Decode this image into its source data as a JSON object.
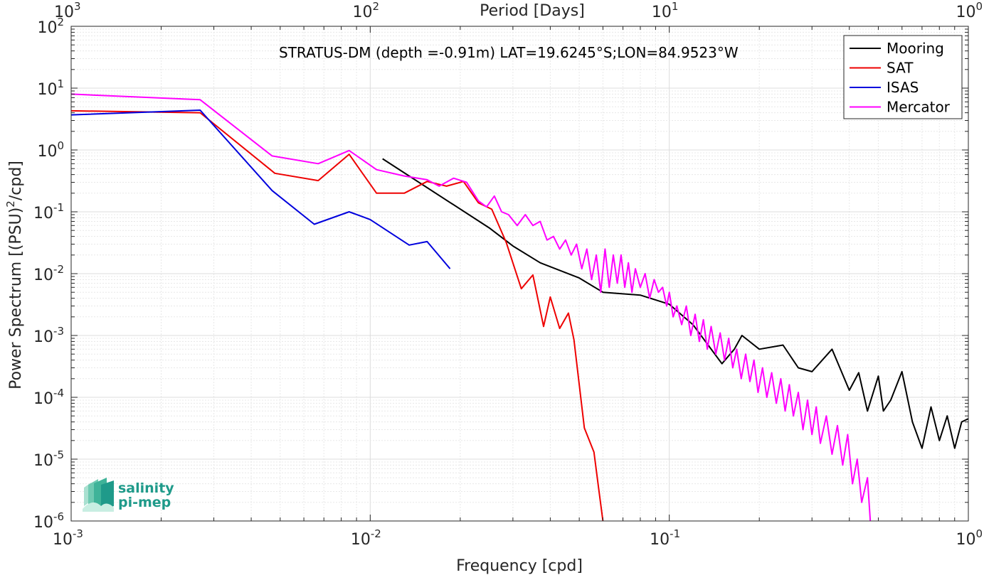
{
  "chart_data": {
    "type": "line",
    "annotation": "STRATUS-DM (depth =-0.91m) LAT=19.6245°S;LON=84.9523°W",
    "xlabel": "Frequency [cpd]",
    "ylabel_main": "Power Spectrum [(PSU)",
    "ylabel_sup": "2",
    "ylabel_tail": "/cpd]",
    "top_xlabel": "Period [Days]",
    "xscale": "log",
    "yscale": "log",
    "xlim": [
      0.001,
      1
    ],
    "ylim": [
      1e-06,
      100
    ],
    "grid": true,
    "legend_position": "top-right",
    "x_tick_labels": [
      {
        "base": "10",
        "exp": "-3"
      },
      {
        "base": "10",
        "exp": "-2"
      },
      {
        "base": "10",
        "exp": "-1"
      },
      {
        "base": "10",
        "exp": "0"
      }
    ],
    "top_tick_labels": [
      {
        "base": "10",
        "exp": "3"
      },
      {
        "base": "10",
        "exp": "2"
      },
      {
        "base": "10",
        "exp": "1"
      },
      {
        "base": "10",
        "exp": "0"
      }
    ],
    "y_tick_labels": [
      {
        "base": "10",
        "exp": "2"
      },
      {
        "base": "10",
        "exp": "1"
      },
      {
        "base": "10",
        "exp": "0"
      },
      {
        "base": "10",
        "exp": "-1"
      },
      {
        "base": "10",
        "exp": "-2"
      },
      {
        "base": "10",
        "exp": "-3"
      },
      {
        "base": "10",
        "exp": "-4"
      },
      {
        "base": "10",
        "exp": "-5"
      },
      {
        "base": "10",
        "exp": "-6"
      }
    ],
    "series": [
      {
        "name": "Mooring",
        "color": "#000000",
        "points": [
          [
            0.011,
            0.72
          ],
          [
            0.025,
            0.055
          ],
          [
            0.03,
            0.028
          ],
          [
            0.037,
            0.015
          ],
          [
            0.05,
            0.0085
          ],
          [
            0.06,
            0.005
          ],
          [
            0.08,
            0.0045
          ],
          [
            0.1,
            0.0032
          ],
          [
            0.12,
            0.0015
          ],
          [
            0.15,
            0.00035
          ],
          [
            0.165,
            0.0006
          ],
          [
            0.175,
            0.001
          ],
          [
            0.2,
            0.0006
          ],
          [
            0.24,
            0.0007
          ],
          [
            0.27,
            0.0003
          ],
          [
            0.3,
            0.00026
          ],
          [
            0.35,
            0.0006
          ],
          [
            0.4,
            0.00013
          ],
          [
            0.43,
            0.00025
          ],
          [
            0.46,
            6e-05
          ],
          [
            0.5,
            0.00022
          ],
          [
            0.52,
            6e-05
          ],
          [
            0.55,
            9e-05
          ],
          [
            0.6,
            0.00026
          ],
          [
            0.65,
            4e-05
          ],
          [
            0.7,
            1.5e-05
          ],
          [
            0.75,
            7e-05
          ],
          [
            0.8,
            2e-05
          ],
          [
            0.85,
            5e-05
          ],
          [
            0.9,
            1.5e-05
          ],
          [
            0.95,
            4e-05
          ],
          [
            1.0,
            4.5e-05
          ]
        ]
      },
      {
        "name": "SAT",
        "color": "#ee0000",
        "points": [
          [
            0.001,
            4.3
          ],
          [
            0.0027,
            4.0
          ],
          [
            0.0048,
            0.42
          ],
          [
            0.0067,
            0.32
          ],
          [
            0.0085,
            0.85
          ],
          [
            0.0105,
            0.2
          ],
          [
            0.013,
            0.2
          ],
          [
            0.0155,
            0.31
          ],
          [
            0.018,
            0.26
          ],
          [
            0.0205,
            0.31
          ],
          [
            0.023,
            0.14
          ],
          [
            0.0255,
            0.11
          ],
          [
            0.0285,
            0.032
          ],
          [
            0.032,
            0.0057
          ],
          [
            0.035,
            0.0095
          ],
          [
            0.038,
            0.0014
          ],
          [
            0.04,
            0.0042
          ],
          [
            0.043,
            0.0013
          ],
          [
            0.046,
            0.0023
          ],
          [
            0.048,
            0.00085
          ],
          [
            0.052,
            3.2e-05
          ],
          [
            0.056,
            1.3e-05
          ],
          [
            0.058,
            3.5e-06
          ],
          [
            0.06,
            1e-06
          ]
        ]
      },
      {
        "name": "ISAS",
        "color": "#0000dd",
        "points": [
          [
            0.001,
            3.7
          ],
          [
            0.0027,
            4.4
          ],
          [
            0.0047,
            0.22
          ],
          [
            0.0065,
            0.063
          ],
          [
            0.0085,
            0.1
          ],
          [
            0.01,
            0.075
          ],
          [
            0.0135,
            0.029
          ],
          [
            0.0155,
            0.033
          ],
          [
            0.0185,
            0.012
          ]
        ]
      },
      {
        "name": "Mercator",
        "color": "#ff00ff",
        "points": [
          [
            0.001,
            8.0
          ],
          [
            0.0027,
            6.5
          ],
          [
            0.0047,
            0.8
          ],
          [
            0.0067,
            0.6
          ],
          [
            0.0085,
            0.98
          ],
          [
            0.0105,
            0.48
          ],
          [
            0.013,
            0.38
          ],
          [
            0.0155,
            0.33
          ],
          [
            0.017,
            0.26
          ],
          [
            0.019,
            0.35
          ],
          [
            0.021,
            0.3
          ],
          [
            0.023,
            0.15
          ],
          [
            0.0245,
            0.12
          ],
          [
            0.026,
            0.18
          ],
          [
            0.0275,
            0.1
          ],
          [
            0.029,
            0.09
          ],
          [
            0.031,
            0.06
          ],
          [
            0.033,
            0.09
          ],
          [
            0.035,
            0.06
          ],
          [
            0.037,
            0.07
          ],
          [
            0.039,
            0.035
          ],
          [
            0.041,
            0.04
          ],
          [
            0.043,
            0.025
          ],
          [
            0.045,
            0.035
          ],
          [
            0.047,
            0.02
          ],
          [
            0.049,
            0.03
          ],
          [
            0.051,
            0.012
          ],
          [
            0.053,
            0.025
          ],
          [
            0.055,
            0.008
          ],
          [
            0.057,
            0.02
          ],
          [
            0.059,
            0.005
          ],
          [
            0.061,
            0.025
          ],
          [
            0.063,
            0.006
          ],
          [
            0.065,
            0.02
          ],
          [
            0.067,
            0.007
          ],
          [
            0.069,
            0.02
          ],
          [
            0.071,
            0.006
          ],
          [
            0.073,
            0.015
          ],
          [
            0.075,
            0.005
          ],
          [
            0.077,
            0.012
          ],
          [
            0.08,
            0.006
          ],
          [
            0.083,
            0.01
          ],
          [
            0.086,
            0.004
          ],
          [
            0.089,
            0.008
          ],
          [
            0.092,
            0.005
          ],
          [
            0.095,
            0.006
          ],
          [
            0.098,
            0.003
          ],
          [
            0.1,
            0.005
          ],
          [
            0.103,
            0.002
          ],
          [
            0.106,
            0.003
          ],
          [
            0.11,
            0.0015
          ],
          [
            0.114,
            0.003
          ],
          [
            0.118,
            0.001
          ],
          [
            0.122,
            0.0022
          ],
          [
            0.126,
            0.0008
          ],
          [
            0.13,
            0.0018
          ],
          [
            0.134,
            0.0006
          ],
          [
            0.138,
            0.0014
          ],
          [
            0.143,
            0.0005
          ],
          [
            0.148,
            0.0011
          ],
          [
            0.153,
            0.0004
          ],
          [
            0.158,
            0.0009
          ],
          [
            0.163,
            0.0003
          ],
          [
            0.168,
            0.0006
          ],
          [
            0.174,
            0.0002
          ],
          [
            0.18,
            0.0005
          ],
          [
            0.186,
            0.00018
          ],
          [
            0.192,
            0.0004
          ],
          [
            0.198,
            0.00012
          ],
          [
            0.205,
            0.0003
          ],
          [
            0.212,
            0.0001
          ],
          [
            0.22,
            0.00025
          ],
          [
            0.228,
            8e-05
          ],
          [
            0.236,
            0.0002
          ],
          [
            0.244,
            6e-05
          ],
          [
            0.252,
            0.00016
          ],
          [
            0.26,
            5e-05
          ],
          [
            0.27,
            0.00012
          ],
          [
            0.28,
            3e-05
          ],
          [
            0.29,
            9e-05
          ],
          [
            0.3,
            2.5e-05
          ],
          [
            0.31,
            7e-05
          ],
          [
            0.32,
            1.8e-05
          ],
          [
            0.335,
            5e-05
          ],
          [
            0.35,
            1.2e-05
          ],
          [
            0.365,
            3.5e-05
          ],
          [
            0.38,
            8e-06
          ],
          [
            0.395,
            2.5e-05
          ],
          [
            0.41,
            4e-06
          ],
          [
            0.425,
            1e-05
          ],
          [
            0.44,
            2e-06
          ],
          [
            0.46,
            5e-06
          ],
          [
            0.47,
            1e-06
          ]
        ]
      }
    ]
  },
  "logo": {
    "line1": "salinity",
    "line2": "pi-mep"
  }
}
